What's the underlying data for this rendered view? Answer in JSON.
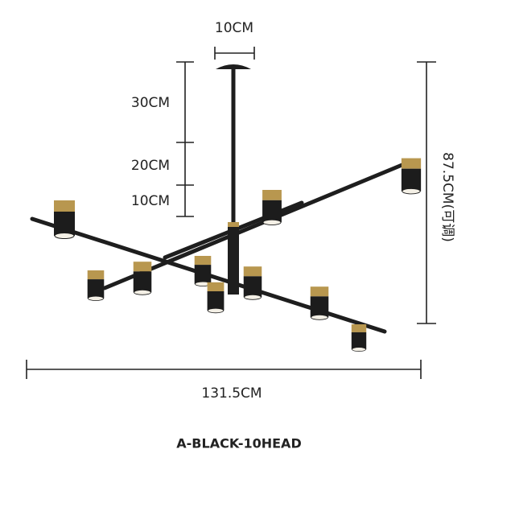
{
  "dimensions": {
    "top_width": "10CM",
    "segments": [
      "30CM",
      "20CM",
      "10CM"
    ],
    "height": "87.5CM(可调)",
    "width": "131.5CM"
  },
  "caption": "A-BLACK-10HEAD"
}
